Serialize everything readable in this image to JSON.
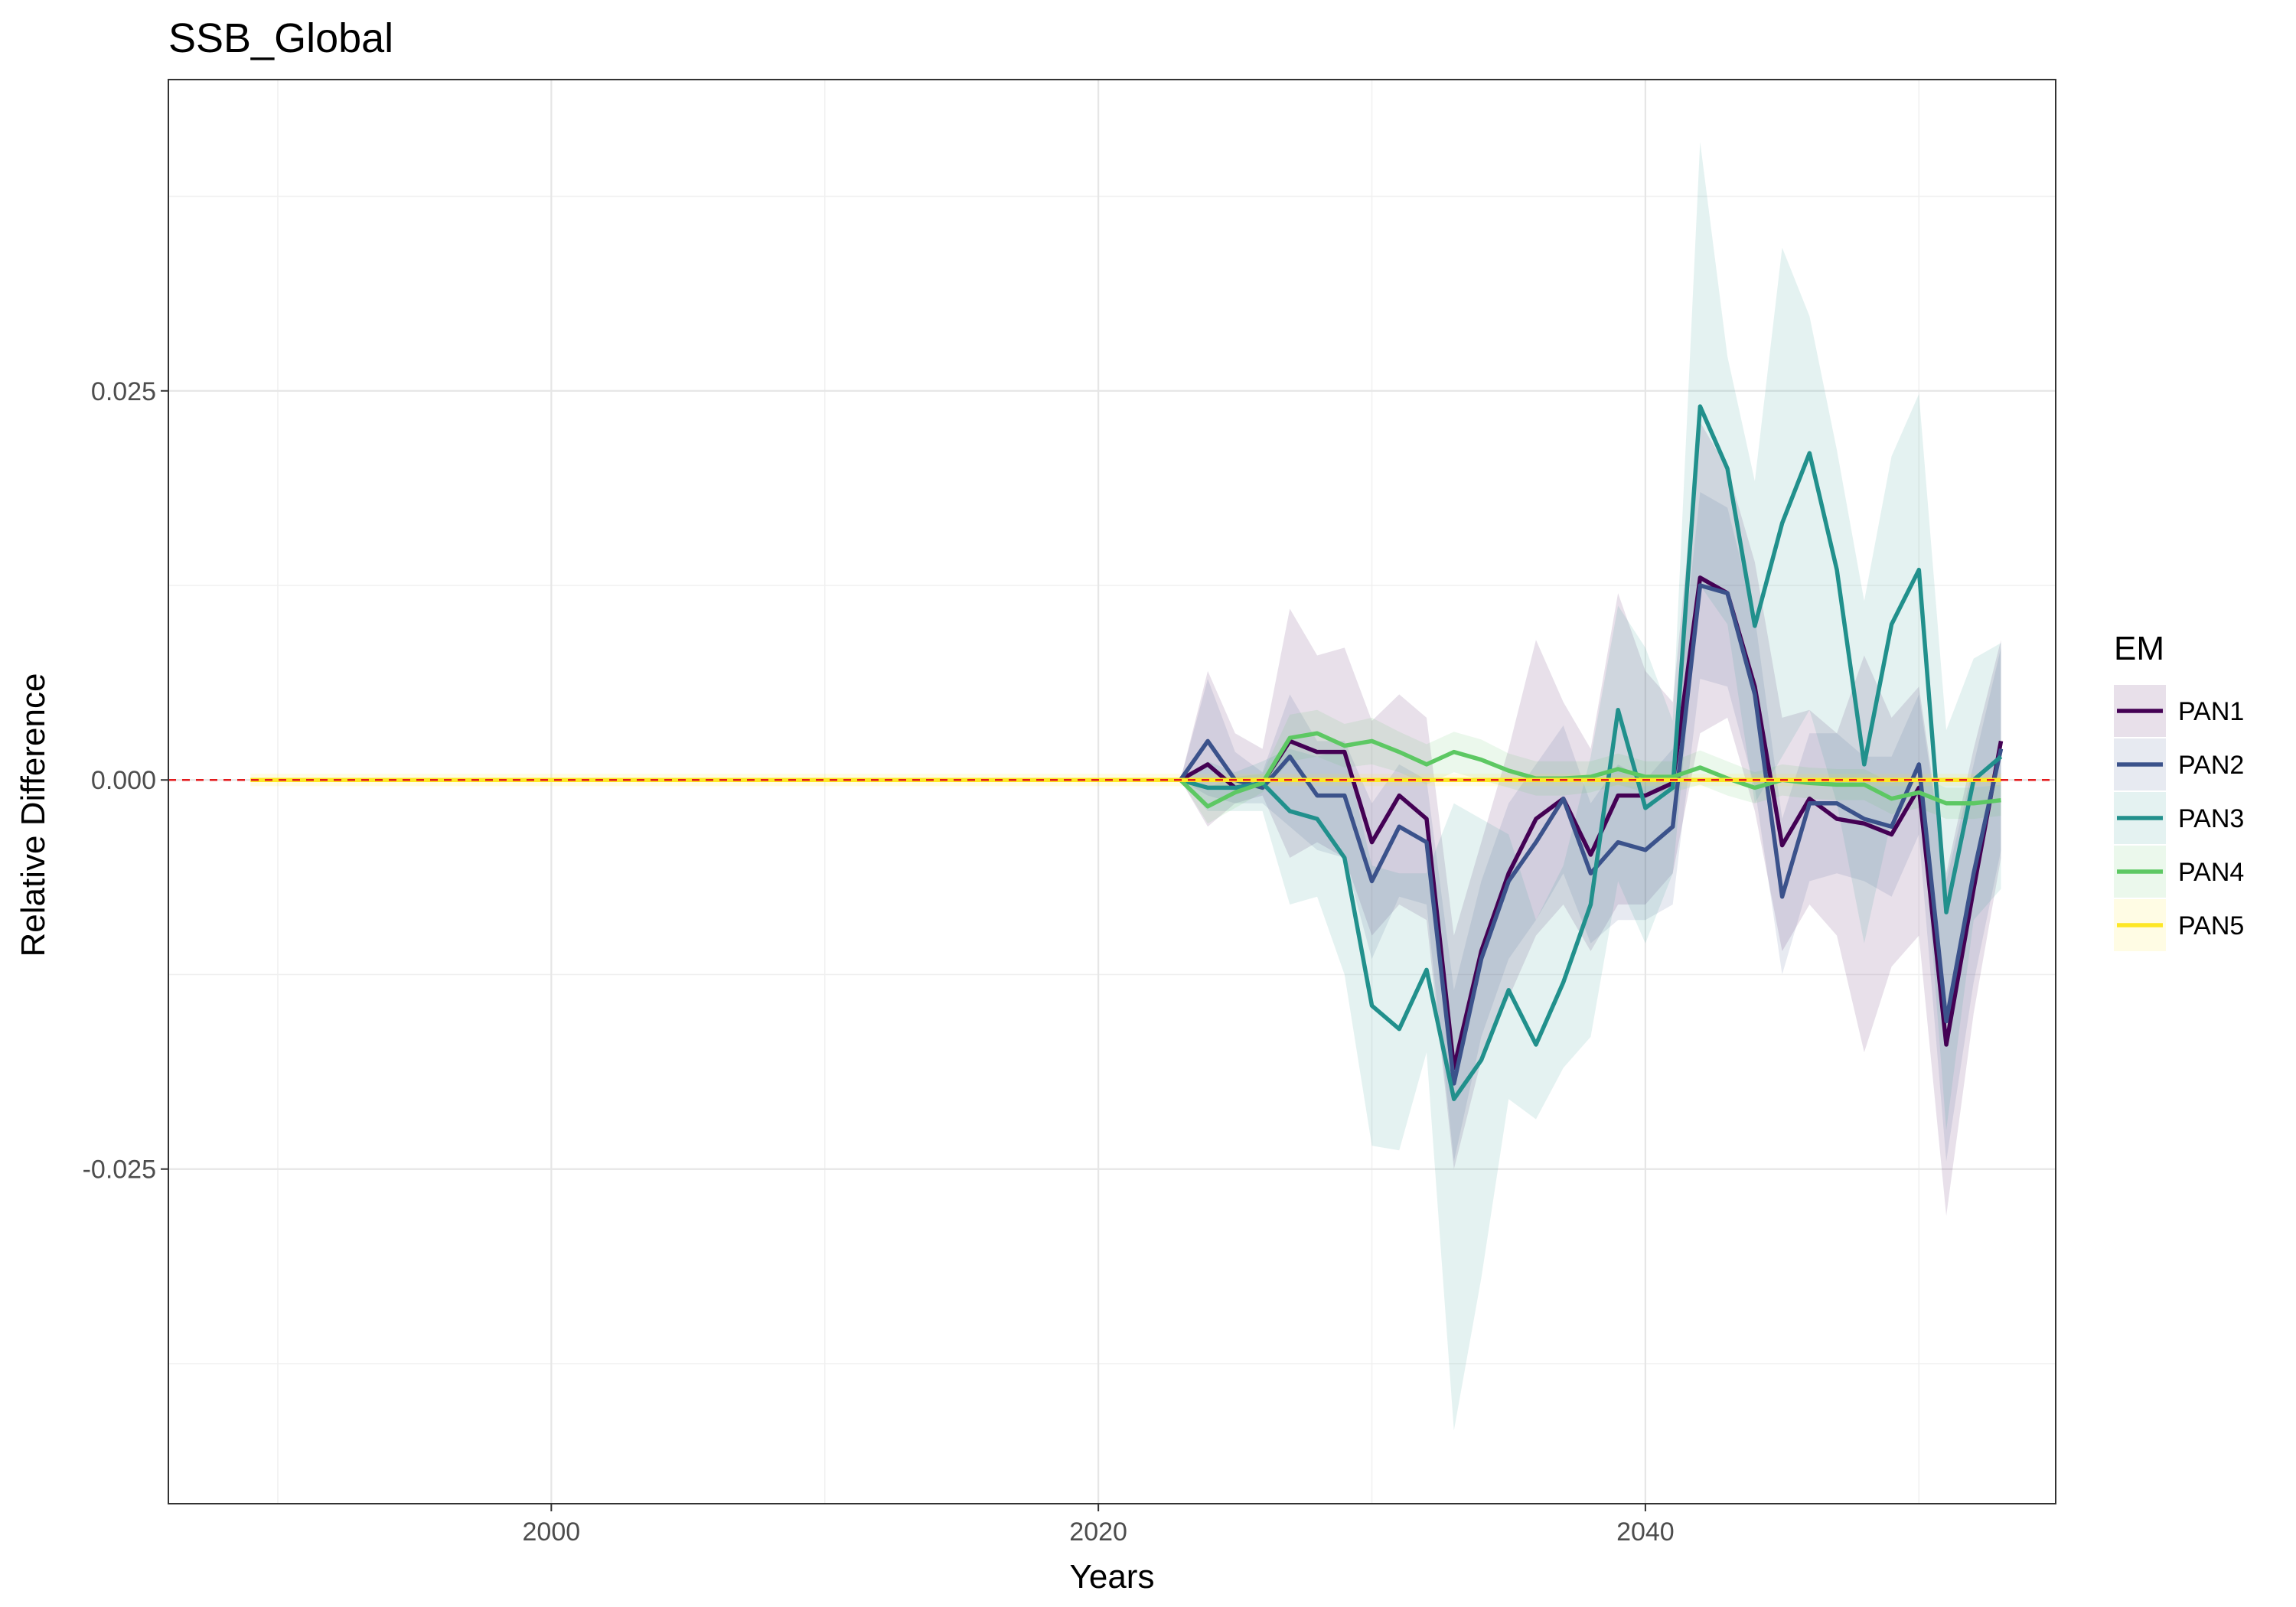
{
  "chart_data": {
    "type": "line",
    "title": "SSB_Global",
    "xlabel": "Years",
    "ylabel": "Relative Difference",
    "xlim": [
      1986,
      2055
    ],
    "ylim": [
      -0.0465,
      0.045
    ],
    "xticks": [
      2000,
      2020,
      2040
    ],
    "xtick_labels": [
      "2000",
      "2020",
      "2040"
    ],
    "yticks": [
      0.025,
      0.0,
      -0.025
    ],
    "ytick_labels": [
      "0.025",
      "0.000",
      "-0.025"
    ],
    "grid": true,
    "legend_position": "right",
    "legend_title": "EM",
    "reference_line": {
      "y": 0.0,
      "color": "#e31a1c",
      "style": "dashed"
    },
    "series": [
      {
        "name": "PAN1",
        "color": "#440154",
        "x": [
          2023,
          2024,
          2025,
          2026,
          2027,
          2028,
          2029,
          2030,
          2031,
          2032,
          2033,
          2034,
          2035,
          2036,
          2037,
          2038,
          2039,
          2040,
          2041,
          2042,
          2043,
          2044,
          2045,
          2046,
          2047,
          2048,
          2049,
          2050,
          2051,
          2052,
          2053
        ],
        "y": [
          0,
          0.001,
          -0.0005,
          -0.0002,
          0.0025,
          0.0018,
          0.0018,
          -0.004,
          -0.001,
          -0.0025,
          -0.0185,
          -0.011,
          -0.006,
          -0.0025,
          -0.0012,
          -0.0048,
          -0.001,
          -0.001,
          -0.0002,
          0.013,
          0.012,
          0.006,
          -0.0042,
          -0.0012,
          -0.0025,
          -0.0028,
          -0.0035,
          -0.0005,
          -0.017,
          -0.007,
          0.0025
        ],
        "lower": [
          0,
          -0.003,
          -0.0015,
          -0.001,
          -0.005,
          -0.004,
          -0.005,
          -0.01,
          -0.008,
          -0.009,
          -0.025,
          -0.018,
          -0.014,
          -0.01,
          -0.008,
          -0.011,
          -0.008,
          -0.008,
          -0.006,
          0.003,
          0.004,
          -0.002,
          -0.011,
          -0.008,
          -0.01,
          -0.0175,
          -0.012,
          -0.01,
          -0.028,
          -0.015,
          -0.005
        ],
        "upper": [
          0,
          0.007,
          0.003,
          0.002,
          0.011,
          0.008,
          0.0085,
          0.0038,
          0.0055,
          0.004,
          -0.01,
          -0.004,
          0.002,
          0.009,
          0.005,
          0.002,
          0.012,
          0.007,
          0.005,
          0.023,
          0.02,
          0.014,
          0.004,
          0.0045,
          0.003,
          0.008,
          0.004,
          0.006,
          -0.006,
          0.002,
          0.009
        ]
      },
      {
        "name": "PAN2",
        "color": "#3b528b",
        "x": [
          2023,
          2024,
          2025,
          2026,
          2027,
          2028,
          2029,
          2030,
          2031,
          2032,
          2033,
          2034,
          2035,
          2036,
          2037,
          2038,
          2039,
          2040,
          2041,
          2042,
          2043,
          2044,
          2045,
          2046,
          2047,
          2048,
          2049,
          2050,
          2051,
          2052,
          2053
        ],
        "y": [
          0,
          0.0025,
          0,
          -0.0005,
          0.0015,
          -0.001,
          -0.001,
          -0.0065,
          -0.003,
          -0.004,
          -0.0195,
          -0.0115,
          -0.0065,
          -0.004,
          -0.0012,
          -0.006,
          -0.004,
          -0.0045,
          -0.003,
          0.0125,
          0.012,
          0.0055,
          -0.0075,
          -0.0015,
          -0.0015,
          -0.0025,
          -0.003,
          0.001,
          -0.0155,
          -0.006,
          0.002
        ],
        "lower": [
          0,
          -0.001,
          -0.0015,
          -0.0015,
          -0.003,
          -0.0045,
          -0.005,
          -0.0115,
          -0.0075,
          -0.008,
          -0.0245,
          -0.0165,
          -0.0115,
          -0.009,
          -0.006,
          -0.0105,
          -0.009,
          -0.009,
          -0.008,
          0.0065,
          0.006,
          -0.0005,
          -0.0125,
          -0.0065,
          -0.006,
          -0.0065,
          -0.0075,
          -0.0035,
          -0.0245,
          -0.013,
          -0.0045
        ],
        "upper": [
          0,
          0.0065,
          0.0018,
          0.0005,
          0.0055,
          0.0025,
          0.0025,
          -0.0015,
          0.001,
          0,
          -0.0135,
          -0.0065,
          -0.0015,
          0.001,
          0.0035,
          -0.0015,
          0.001,
          0,
          0.002,
          0.0185,
          0.0175,
          0.0105,
          -0.0025,
          0.003,
          0.003,
          0.0015,
          0.0015,
          0.0055,
          -0.0065,
          0.001,
          0.0085
        ]
      },
      {
        "name": "PAN3",
        "color": "#21908c",
        "x": [
          2023,
          2024,
          2025,
          2026,
          2027,
          2028,
          2029,
          2030,
          2031,
          2032,
          2033,
          2034,
          2035,
          2036,
          2037,
          2038,
          2039,
          2040,
          2041,
          2042,
          2043,
          2044,
          2045,
          2046,
          2047,
          2048,
          2049,
          2050,
          2051,
          2052,
          2053
        ],
        "y": [
          0,
          -0.0005,
          -0.0005,
          -0.0002,
          -0.002,
          -0.0025,
          -0.005,
          -0.0145,
          -0.016,
          -0.0122,
          -0.0205,
          -0.018,
          -0.0135,
          -0.017,
          -0.013,
          -0.008,
          0.0045,
          -0.0018,
          -0.0005,
          0.024,
          0.02,
          0.0099,
          0.0165,
          0.021,
          0.0135,
          0.001,
          0.01,
          0.0135,
          -0.0085,
          0,
          0.0015
        ],
        "lower": [
          0,
          -0.002,
          -0.002,
          -0.002,
          -0.008,
          -0.0075,
          -0.0125,
          -0.0235,
          -0.0238,
          -0.0175,
          -0.0418,
          -0.032,
          -0.0205,
          -0.0218,
          -0.0185,
          -0.0165,
          -0.0065,
          -0.0105,
          -0.006,
          0.0125,
          0.01,
          -0.0015,
          0.0015,
          0.0045,
          -0.0015,
          -0.0105,
          -0.0025,
          0.0005,
          -0.0225,
          -0.009,
          -0.007
        ],
        "upper": [
          0,
          0.0012,
          0.0005,
          0.0012,
          0.002,
          0.0015,
          0.002,
          -0.0055,
          -0.006,
          -0.006,
          -0.0015,
          -0.0025,
          -0.0035,
          -0.009,
          -0.0055,
          0.0015,
          0.0112,
          0.0085,
          0.0038,
          0.041,
          0.0272,
          0.0192,
          0.0342,
          0.0298,
          0.0212,
          0.0115,
          0.0208,
          0.0248,
          0.0032,
          0.0078,
          0.0088
        ]
      },
      {
        "name": "PAN4",
        "color": "#5dc863",
        "x": [
          2023,
          2024,
          2025,
          2026,
          2027,
          2028,
          2029,
          2030,
          2031,
          2032,
          2033,
          2034,
          2035,
          2036,
          2037,
          2038,
          2039,
          2040,
          2041,
          2042,
          2043,
          2044,
          2045,
          2046,
          2047,
          2048,
          2049,
          2050,
          2051,
          2052,
          2053
        ],
        "y": [
          0,
          -0.0017,
          -0.0008,
          -0.0002,
          0.0027,
          0.003,
          0.0022,
          0.0025,
          0.0018,
          0.001,
          0.0018,
          0.0013,
          0.0006,
          0.0001,
          0.0001,
          0.0002,
          0.0007,
          0.0002,
          0.0002,
          0.0008,
          0.0001,
          -0.0005,
          0,
          -0.0002,
          -0.0003,
          -0.0003,
          -0.0012,
          -0.0008,
          -0.0015,
          -0.0015,
          -0.0013
        ],
        "lower": [
          0,
          -0.0028,
          -0.0018,
          -0.0008,
          0.0012,
          0.0015,
          0.0008,
          0.001,
          0.0005,
          -0.0003,
          0.0005,
          0,
          -0.0005,
          -0.001,
          -0.001,
          -0.0008,
          -0.0003,
          -0.0008,
          -0.0008,
          -0.0003,
          -0.001,
          -0.0015,
          -0.001,
          -0.0012,
          -0.0013,
          -0.0013,
          -0.0022,
          -0.0018,
          -0.0025,
          -0.0025,
          -0.0023
        ],
        "upper": [
          0,
          -0.0005,
          0.0002,
          0.0004,
          0.0042,
          0.0045,
          0.0036,
          0.004,
          0.0031,
          0.0023,
          0.0031,
          0.0026,
          0.0017,
          0.0012,
          0.0012,
          0.0012,
          0.0017,
          0.0012,
          0.0012,
          0.0019,
          0.0012,
          0.0005,
          0.001,
          0.0008,
          0.0007,
          0.0007,
          -0.0002,
          0.0002,
          -0.0005,
          -0.0005,
          -0.0003
        ]
      },
      {
        "name": "PAN5",
        "color": "#fde725",
        "x": [
          1989,
          2053
        ],
        "y": [
          0,
          0
        ],
        "lower": [
          -0.0004,
          -0.0004
        ],
        "upper": [
          0.0004,
          0.0004
        ]
      }
    ]
  }
}
